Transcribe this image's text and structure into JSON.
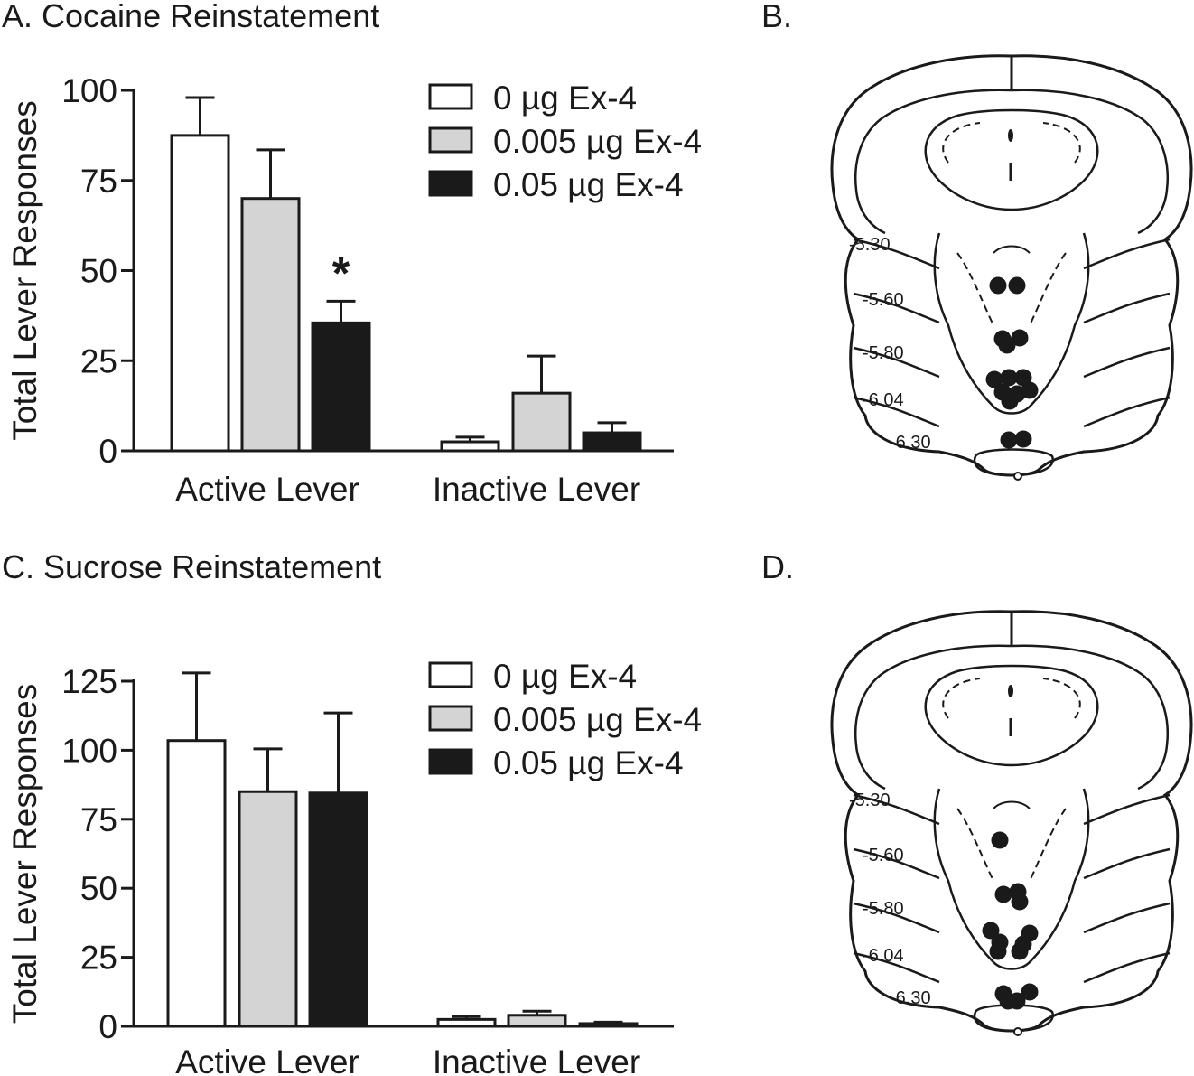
{
  "panels": {
    "a": {
      "title": "A. Cocaine Reinstatement"
    },
    "b": {
      "title": "B."
    },
    "c": {
      "title": "C. Sucrose Reinstatement"
    },
    "d": {
      "title": "D."
    }
  },
  "chart_data": [
    {
      "type": "bar",
      "panel": "A",
      "title": "A. Cocaine Reinstatement",
      "ylabel": "Total Lever Responses",
      "xlabel": "",
      "categories": [
        "Active Lever",
        "Inactive Lever"
      ],
      "ylim": [
        0,
        100
      ],
      "yticks": [
        0,
        25,
        50,
        75,
        100
      ],
      "legend_position": "top-right",
      "series": [
        {
          "name": "0 µg Ex-4",
          "color": "#ffffff",
          "values": [
            87.5,
            2.5
          ],
          "errors": [
            10.5,
            1.3
          ]
        },
        {
          "name": "0.005 µg Ex-4",
          "color": "#d4d4d4",
          "values": [
            70,
            16
          ],
          "errors": [
            13.5,
            10.3
          ]
        },
        {
          "name": "0.05 µg Ex-4",
          "color": "#1a1a1a",
          "values": [
            35.5,
            5
          ],
          "errors": [
            6,
            2.8
          ]
        }
      ],
      "annotations": [
        {
          "text": "*",
          "category": "Active Lever",
          "series": "0.05 µg Ex-4"
        }
      ]
    },
    {
      "type": "bar",
      "panel": "C",
      "title": "C. Sucrose Reinstatement",
      "ylabel": "Total Lever Responses",
      "xlabel": "",
      "categories": [
        "Active Lever",
        "Inactive Lever"
      ],
      "ylim": [
        0,
        125
      ],
      "yticks": [
        0,
        25,
        50,
        75,
        100,
        125
      ],
      "legend_position": "top-right",
      "series": [
        {
          "name": "0 µg Ex-4",
          "color": "#ffffff",
          "values": [
            103.5,
            2.5
          ],
          "errors": [
            24.5,
            1
          ]
        },
        {
          "name": "0.005 µg Ex-4",
          "color": "#d4d4d4",
          "values": [
            85,
            4
          ],
          "errors": [
            15.5,
            1.5
          ]
        },
        {
          "name": "0.05 µg Ex-4",
          "color": "#1a1a1a",
          "values": [
            84.5,
            1
          ],
          "errors": [
            29,
            0.5
          ]
        }
      ],
      "annotations": []
    }
  ],
  "brain_diagrams": [
    {
      "panel": "B",
      "section_labels": [
        "-5.30",
        "-5.60",
        "-5.80",
        "-6.04",
        "-6.30"
      ]
    },
    {
      "panel": "D",
      "section_labels": [
        "-5.30",
        "-5.60",
        "-5.80",
        "-6.04",
        "-6.30"
      ]
    }
  ]
}
